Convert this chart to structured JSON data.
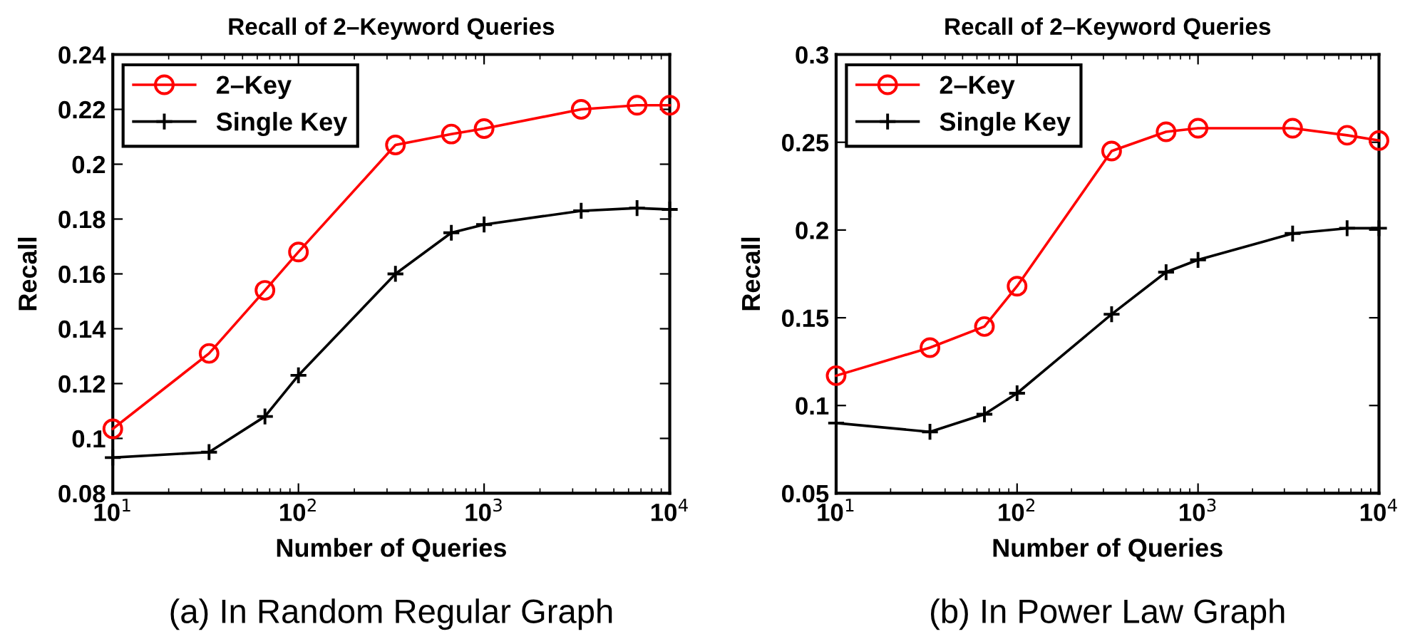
{
  "chart_data": [
    {
      "type": "line",
      "title": "Recall of 2–Keyword Queries",
      "xlabel": "Number of Queries",
      "ylabel": "Recall",
      "log": "x",
      "legend": "top left",
      "grid": false,
      "x": [
        10,
        33,
        66,
        100,
        333,
        666,
        1000,
        3333,
        6666,
        10000
      ],
      "xlim": [
        10,
        10000
      ],
      "xticks": [
        {
          "value": 10,
          "label": "10$^{1}$"
        },
        {
          "value": 100,
          "label": "10$^{2}$"
        },
        {
          "value": 1000,
          "label": "10$^{3}$"
        },
        {
          "value": 10000,
          "label": "10$^{4}$"
        }
      ],
      "ylim": [
        0.08,
        0.24
      ],
      "yticks": [
        0.08,
        0.1,
        0.12,
        0.14,
        0.16,
        0.18,
        0.2,
        0.22,
        0.24
      ],
      "annotations": [
        "(a) In Random Regular Graph"
      ],
      "series": [
        {
          "name": "2–Key",
          "color": "#ff0000",
          "marker": "circle",
          "values": [
            0.1035,
            0.131,
            0.154,
            0.168,
            0.207,
            0.211,
            0.213,
            0.22,
            0.2215,
            0.2215
          ]
        },
        {
          "name": "Single Key",
          "color": "#000000",
          "marker": "cross",
          "values": [
            0.093,
            0.095,
            0.108,
            0.123,
            0.16,
            0.175,
            0.178,
            0.183,
            0.184,
            0.1835
          ]
        }
      ]
    },
    {
      "type": "line",
      "title": "Recall of 2–Keyword Queries",
      "xlabel": "Number of Queries",
      "ylabel": "Recall",
      "log": "x",
      "legend": "top left",
      "grid": false,
      "x": [
        10,
        33,
        66,
        100,
        333,
        666,
        1000,
        3333,
        6666,
        10000
      ],
      "xlim": [
        10,
        10000
      ],
      "xticks": [
        {
          "value": 10,
          "label": "10$^{1}$"
        },
        {
          "value": 100,
          "label": "10$^{2}$"
        },
        {
          "value": 1000,
          "label": "10$^{3}$"
        },
        {
          "value": 10000,
          "label": "10$^{4}$"
        }
      ],
      "ylim": [
        0.05,
        0.3
      ],
      "yticks": [
        0.05,
        0.1,
        0.15,
        0.2,
        0.25,
        0.3
      ],
      "annotations": [
        "(b) In Power Law Graph"
      ],
      "series": [
        {
          "name": "2–Key",
          "color": "#ff0000",
          "marker": "circle",
          "values": [
            0.117,
            0.133,
            0.145,
            0.168,
            0.245,
            0.256,
            0.258,
            0.258,
            0.254,
            0.251
          ]
        },
        {
          "name": "Single Key",
          "color": "#000000",
          "marker": "cross",
          "values": [
            0.09,
            0.085,
            0.095,
            0.107,
            0.152,
            0.176,
            0.183,
            0.198,
            0.201,
            0.201
          ]
        }
      ]
    }
  ]
}
